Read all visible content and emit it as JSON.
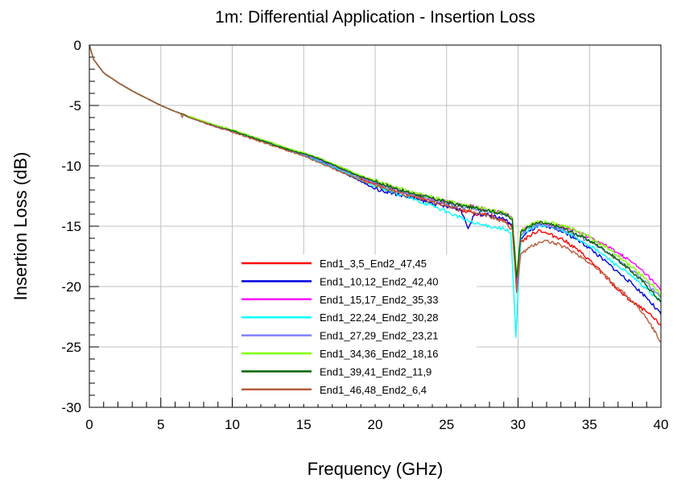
{
  "chart_data": {
    "type": "line",
    "title": "1m: Differential Application - Insertion Loss",
    "xlabel": "Frequency (GHz)",
    "ylabel": "Insertion Loss (dB)",
    "xlim": [
      0,
      40
    ],
    "ylim": [
      -30,
      0
    ],
    "x_ticks": [
      "0",
      "5",
      "10",
      "15",
      "20",
      "25",
      "30",
      "35",
      "40"
    ],
    "y_ticks": [
      "0",
      "-5",
      "-10",
      "-15",
      "-20",
      "-25",
      "-30"
    ],
    "grid": true,
    "legend_position": "bottom-center",
    "series": [
      {
        "name": "End1_3,5_End2_47,45",
        "color": "#ff0000",
        "x": [
          0,
          0.3,
          1,
          2,
          3,
          4,
          5,
          6,
          6.5,
          7,
          8,
          9,
          10,
          11,
          12,
          13,
          14,
          15,
          16,
          17,
          18,
          19,
          20,
          21,
          22,
          23,
          24,
          25,
          26,
          27,
          28,
          29,
          29.6,
          29.9,
          30.2,
          30.8,
          31.5,
          32,
          33,
          34,
          35,
          36,
          37,
          38,
          39,
          40
        ],
        "y": [
          0,
          -1.2,
          -2.3,
          -3.1,
          -3.8,
          -4.4,
          -5.0,
          -5.5,
          -5.7,
          -6.0,
          -6.4,
          -6.8,
          -7.1,
          -7.5,
          -7.9,
          -8.3,
          -8.7,
          -9.1,
          -9.6,
          -10.1,
          -10.6,
          -11.1,
          -11.5,
          -11.9,
          -12.3,
          -12.6,
          -12.9,
          -13.2,
          -13.7,
          -14.0,
          -14.1,
          -14.5,
          -15.0,
          -20.0,
          -16.3,
          -15.8,
          -15.3,
          -15.6,
          -16.0,
          -16.8,
          -17.8,
          -19.0,
          -20.3,
          -21.3,
          -22.1,
          -23.2
        ]
      },
      {
        "name": "End1_10,12_End2_42,40",
        "color": "#0000e0",
        "x": [
          0,
          0.3,
          1,
          2,
          3,
          4,
          5,
          6,
          6.5,
          7,
          8,
          9,
          10,
          11,
          12,
          13,
          14,
          15,
          16,
          17,
          18,
          19,
          20,
          21,
          22,
          23,
          24,
          25,
          26,
          26.3,
          26.5,
          27,
          28,
          29,
          29.6,
          29.9,
          30.2,
          30.8,
          31.5,
          32,
          33,
          34,
          35,
          36,
          37,
          38,
          39,
          40
        ],
        "y": [
          0,
          -1.2,
          -2.3,
          -3.1,
          -3.8,
          -4.4,
          -5.0,
          -5.5,
          -5.7,
          -6.0,
          -6.4,
          -6.8,
          -7.1,
          -7.5,
          -7.9,
          -8.3,
          -8.7,
          -9.1,
          -9.6,
          -10.1,
          -10.7,
          -11.3,
          -11.9,
          -12.2,
          -12.5,
          -12.8,
          -13.1,
          -13.4,
          -13.6,
          -14.5,
          -15.2,
          -13.9,
          -14.1,
          -14.4,
          -14.9,
          -19.6,
          -16.0,
          -15.4,
          -14.9,
          -15.1,
          -15.4,
          -16.0,
          -16.8,
          -17.8,
          -18.8,
          -19.8,
          -20.9,
          -22.3
        ]
      },
      {
        "name": "End1_15,17_End2_35,33",
        "color": "#ff00ff",
        "x": [
          0,
          0.3,
          1,
          2,
          3,
          4,
          5,
          6,
          6.5,
          7,
          8,
          9,
          10,
          11,
          12,
          13,
          14,
          15,
          16,
          17,
          18,
          19,
          20,
          21,
          22,
          23,
          24,
          25,
          26,
          27,
          28,
          29,
          29.6,
          29.9,
          30.2,
          30.8,
          31.5,
          32,
          33,
          34,
          35,
          36,
          37,
          38,
          39,
          40
        ],
        "y": [
          0,
          -1.2,
          -2.3,
          -3.1,
          -3.8,
          -4.4,
          -5.0,
          -5.5,
          -5.7,
          -6.0,
          -6.4,
          -6.8,
          -7.1,
          -7.5,
          -7.9,
          -8.3,
          -8.7,
          -9.0,
          -9.4,
          -9.9,
          -10.4,
          -10.9,
          -11.3,
          -11.7,
          -12.1,
          -12.4,
          -12.7,
          -13.0,
          -13.2,
          -13.4,
          -13.6,
          -13.9,
          -14.3,
          -19.6,
          -15.5,
          -15.0,
          -14.7,
          -14.8,
          -15.0,
          -15.4,
          -15.9,
          -16.5,
          -17.2,
          -18.0,
          -19.0,
          -20.3
        ]
      },
      {
        "name": "End1_22,24_End2_30,28",
        "color": "#00ffff",
        "x": [
          0,
          0.3,
          1,
          2,
          3,
          4,
          5,
          6,
          6.5,
          7,
          8,
          9,
          10,
          11,
          12,
          13,
          14,
          15,
          16,
          17,
          18,
          19,
          20,
          21,
          22,
          23,
          24,
          25,
          26,
          27,
          28,
          29,
          29.5,
          29.85,
          30.2,
          30.8,
          31.5,
          32,
          33,
          34,
          35,
          36,
          37,
          38,
          39,
          40
        ],
        "y": [
          0,
          -1.2,
          -2.3,
          -3.1,
          -3.8,
          -4.4,
          -5.0,
          -5.5,
          -5.7,
          -6.0,
          -6.4,
          -6.8,
          -7.1,
          -7.5,
          -7.9,
          -8.3,
          -8.7,
          -9.1,
          -9.6,
          -10.1,
          -10.6,
          -11.2,
          -11.7,
          -12.1,
          -12.5,
          -12.9,
          -13.3,
          -13.8,
          -14.3,
          -14.8,
          -15.0,
          -15.2,
          -15.6,
          -24.2,
          -15.8,
          -15.2,
          -14.9,
          -15.0,
          -15.3,
          -15.9,
          -16.6,
          -17.4,
          -18.3,
          -19.2,
          -20.2,
          -21.3
        ]
      },
      {
        "name": "End1_27,29_End2_23,21",
        "color": "#8080ff",
        "x": [
          0,
          0.3,
          1,
          2,
          3,
          4,
          5,
          6,
          6.5,
          7,
          8,
          9,
          10,
          11,
          12,
          13,
          14,
          15,
          16,
          17,
          18,
          19,
          20,
          21,
          22,
          23,
          24,
          25,
          26,
          27,
          28,
          29,
          29.6,
          29.9,
          30.2,
          30.8,
          31.5,
          32,
          33,
          34,
          35,
          36,
          37,
          38,
          39,
          40
        ],
        "y": [
          0,
          -1.2,
          -2.3,
          -3.1,
          -3.8,
          -4.4,
          -5.0,
          -5.5,
          -5.7,
          -6.0,
          -6.4,
          -6.8,
          -7.1,
          -7.5,
          -7.9,
          -8.3,
          -8.7,
          -9.1,
          -9.5,
          -10.0,
          -10.5,
          -11.0,
          -11.4,
          -11.8,
          -12.2,
          -12.5,
          -12.8,
          -13.1,
          -13.4,
          -13.6,
          -13.8,
          -14.0,
          -14.4,
          -20.5,
          -15.7,
          -15.1,
          -14.8,
          -14.9,
          -15.2,
          -15.7,
          -16.3,
          -17.0,
          -17.8,
          -18.7,
          -19.7,
          -20.9
        ]
      },
      {
        "name": "End1_34,36_End2_18,16",
        "color": "#80ff00",
        "x": [
          0,
          0.3,
          1,
          2,
          3,
          4,
          5,
          6,
          6.5,
          7,
          8,
          9,
          10,
          11,
          12,
          13,
          14,
          15,
          16,
          17,
          18,
          19,
          20,
          21,
          22,
          23,
          24,
          25,
          26,
          27,
          28,
          29,
          29.6,
          29.9,
          30.2,
          30.8,
          31.5,
          32,
          33,
          34,
          35,
          36,
          37,
          38,
          39,
          40
        ],
        "y": [
          0,
          -1.2,
          -2.3,
          -3.1,
          -3.8,
          -4.4,
          -5.0,
          -5.5,
          -5.7,
          -5.9,
          -6.3,
          -6.7,
          -7.0,
          -7.4,
          -7.8,
          -8.2,
          -8.6,
          -8.9,
          -9.3,
          -9.8,
          -10.3,
          -10.8,
          -11.2,
          -11.6,
          -12.0,
          -12.3,
          -12.6,
          -12.9,
          -13.2,
          -13.4,
          -13.6,
          -13.9,
          -14.3,
          -19.0,
          -15.4,
          -14.9,
          -14.6,
          -14.7,
          -14.9,
          -15.3,
          -15.9,
          -16.6,
          -17.5,
          -18.4,
          -19.4,
          -20.7
        ]
      },
      {
        "name": "End1_39,41_End2_11,9",
        "color": "#006400",
        "x": [
          0,
          0.3,
          1,
          2,
          3,
          4,
          5,
          6,
          6.5,
          7,
          8,
          9,
          10,
          11,
          12,
          13,
          14,
          15,
          16,
          17,
          18,
          19,
          20,
          21,
          22,
          23,
          24,
          25,
          26,
          27,
          28,
          29,
          29.6,
          29.9,
          30.2,
          30.8,
          31.5,
          32,
          33,
          34,
          35,
          36,
          37,
          38,
          39,
          40
        ],
        "y": [
          0,
          -1.2,
          -2.3,
          -3.1,
          -3.8,
          -4.4,
          -5.0,
          -5.5,
          -5.7,
          -6.0,
          -6.4,
          -6.8,
          -7.1,
          -7.5,
          -7.9,
          -8.3,
          -8.7,
          -9.0,
          -9.4,
          -9.9,
          -10.4,
          -10.9,
          -11.3,
          -11.7,
          -12.1,
          -12.4,
          -12.7,
          -13.0,
          -13.3,
          -13.5,
          -13.7,
          -14.0,
          -14.4,
          -19.3,
          -15.5,
          -15.0,
          -14.7,
          -14.8,
          -15.1,
          -15.6,
          -16.2,
          -16.9,
          -17.8,
          -18.8,
          -19.9,
          -21.3
        ]
      },
      {
        "name": "End1_46,48_End2_6,4",
        "color": "#b85c3c",
        "x": [
          0,
          0.3,
          1,
          2,
          3,
          4,
          5,
          6,
          6.4,
          6.5,
          6.6,
          7,
          8,
          9,
          10,
          11,
          12,
          13,
          14,
          15,
          16,
          17,
          18,
          19,
          20,
          21,
          22,
          23,
          24,
          25,
          26,
          27,
          28,
          29,
          29.6,
          29.9,
          30.2,
          30.8,
          31.5,
          32,
          33,
          34,
          35,
          36,
          37,
          38,
          39,
          40
        ],
        "y": [
          0,
          -1.2,
          -2.3,
          -3.1,
          -3.8,
          -4.4,
          -5.0,
          -5.5,
          -5.7,
          -6.0,
          -5.7,
          -6.0,
          -6.4,
          -6.8,
          -7.2,
          -7.6,
          -8.0,
          -8.4,
          -8.8,
          -9.2,
          -9.7,
          -10.2,
          -10.7,
          -11.2,
          -11.6,
          -12.0,
          -12.4,
          -12.7,
          -13.0,
          -13.3,
          -13.6,
          -13.9,
          -14.2,
          -14.6,
          -15.3,
          -20.5,
          -17.3,
          -16.8,
          -16.3,
          -16.2,
          -16.6,
          -17.2,
          -18.0,
          -19.0,
          -20.1,
          -21.2,
          -22.6,
          -24.6
        ]
      }
    ]
  }
}
